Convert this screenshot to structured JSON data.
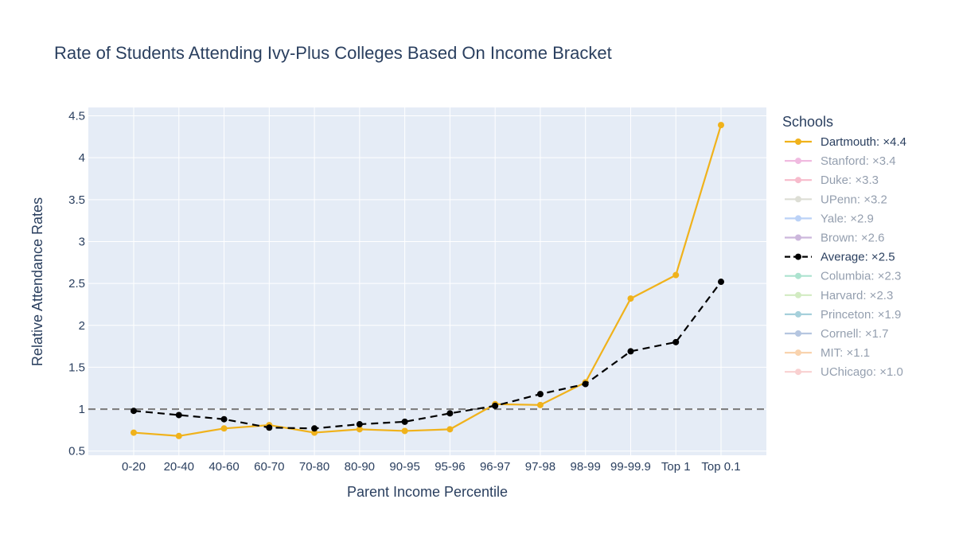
{
  "chart_data": {
    "type": "line",
    "title": "Rate of Students Attending Ivy-Plus Colleges Based On Income Bracket",
    "xlabel": "Parent Income Percentile",
    "ylabel": "Relative Attendance Rates",
    "categories": [
      "0-20",
      "20-40",
      "40-60",
      "60-70",
      "70-80",
      "80-90",
      "90-95",
      "95-96",
      "96-97",
      "97-98",
      "98-99",
      "99-99.9",
      "Top 1",
      "Top 0.1"
    ],
    "ylim": [
      0.45,
      4.6
    ],
    "yticks": [
      0.5,
      1,
      1.5,
      2,
      2.5,
      3,
      3.5,
      4,
      4.5
    ],
    "ytick_labels": [
      "0.5",
      "1",
      "1.5",
      "2",
      "2.5",
      "3",
      "3.5",
      "4",
      "4.5"
    ],
    "reference_line": {
      "y": 1,
      "style": "dashed",
      "color": "#808080"
    },
    "grid": true,
    "legend": {
      "title": "Schools",
      "placement": "right",
      "entries": [
        {
          "label": "Dartmouth: ×4.4",
          "color": "#f0b21b",
          "active": true,
          "dash": false
        },
        {
          "label": "Stanford: ×3.4",
          "color": "#e377c2",
          "active": false,
          "dash": false
        },
        {
          "label": "Duke: ×3.3",
          "color": "#f07a9a",
          "active": false,
          "dash": false
        },
        {
          "label": "UPenn: ×3.2",
          "color": "#bcbfad",
          "active": false,
          "dash": false
        },
        {
          "label": "Yale: ×2.9",
          "color": "#7aa6f0",
          "active": false,
          "dash": false
        },
        {
          "label": "Brown: ×2.6",
          "color": "#9b72bb",
          "active": false,
          "dash": false
        },
        {
          "label": "Average: ×2.5",
          "color": "#000000",
          "active": true,
          "dash": true
        },
        {
          "label": "Columbia: ×2.3",
          "color": "#5bc8a0",
          "active": false,
          "dash": false
        },
        {
          "label": "Harvard: ×2.3",
          "color": "#a6d987",
          "active": false,
          "dash": false
        },
        {
          "label": "Princeton: ×1.9",
          "color": "#4fa3b8",
          "active": false,
          "dash": false
        },
        {
          "label": "Cornell: ×1.7",
          "color": "#6d8fc2",
          "active": false,
          "dash": false
        },
        {
          "label": "MIT: ×1.1",
          "color": "#f5a860",
          "active": false,
          "dash": false
        },
        {
          "label": "UChicago: ×1.0",
          "color": "#f5a3a3",
          "active": false,
          "dash": false
        }
      ]
    },
    "series": [
      {
        "name": "Dartmouth",
        "color": "#f0b21b",
        "dash": false,
        "values": [
          0.72,
          0.68,
          0.77,
          0.81,
          0.72,
          0.76,
          0.74,
          0.76,
          1.06,
          1.05,
          1.32,
          2.32,
          2.6,
          4.39
        ]
      },
      {
        "name": "Average",
        "color": "#000000",
        "dash": true,
        "values": [
          0.98,
          0.93,
          0.88,
          0.78,
          0.77,
          0.82,
          0.85,
          0.95,
          1.04,
          1.18,
          1.3,
          1.69,
          1.8,
          2.52
        ]
      }
    ]
  },
  "colors": {
    "plot_background": "#e5ecf6",
    "grid": "#ffffff",
    "text": "#2a3f5f",
    "inactive_text": "#a8b2bf"
  }
}
